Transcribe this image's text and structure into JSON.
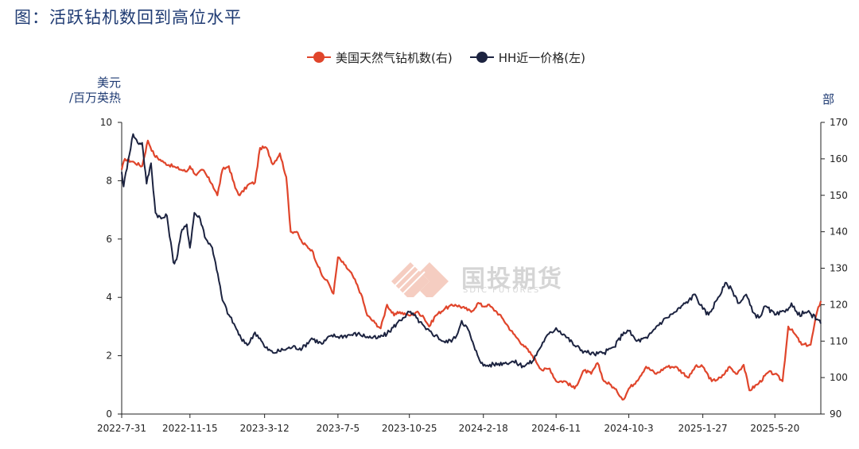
{
  "title": "图：活跃钻机数回到高位水平",
  "watermark": {
    "text": "国投期货",
    "subtext": "SDIC FUTURES"
  },
  "colors": {
    "rig_series": "#e0452b",
    "hh_series": "#1c2340",
    "title": "#1f3b73",
    "axis": "#222222"
  },
  "chart_data": {
    "type": "line",
    "legend_position": "top-center",
    "grid": false,
    "y_left_label": "美元\n/百万英热",
    "y_right_label": "部",
    "y_left_range": [
      0,
      10
    ],
    "y_right_range": [
      90,
      170
    ],
    "y_left_ticks": [
      "0",
      "2",
      "4",
      "6",
      "8",
      "10"
    ],
    "y_right_ticks": [
      "90",
      "100",
      "110",
      "120",
      "130",
      "140",
      "150",
      "160",
      "170"
    ],
    "x_range": [
      "2022-07-31",
      "2025-07-31"
    ],
    "x_ticks": [
      "2022-7-31",
      "2022-11-15",
      "2023-3-12",
      "2023-7-5",
      "2023-10-25",
      "2024-2-18",
      "2024-6-11",
      "2024-10-3",
      "2025-1-27",
      "2025-5-20"
    ],
    "series": [
      {
        "name": "美国天然气钻机数(右)",
        "axis": "right",
        "points": [
          [
            "2022-07-31",
            157
          ],
          [
            "2022-08-05",
            160
          ],
          [
            "2022-08-20",
            159
          ],
          [
            "2022-09-01",
            158
          ],
          [
            "2022-09-10",
            165
          ],
          [
            "2022-09-20",
            161
          ],
          [
            "2022-10-05",
            159
          ],
          [
            "2022-10-25",
            157.5
          ],
          [
            "2022-11-10",
            156.5
          ],
          [
            "2022-11-15",
            158
          ],
          [
            "2022-11-25",
            155.5
          ],
          [
            "2022-12-05",
            157
          ],
          [
            "2022-12-20",
            153
          ],
          [
            "2022-12-28",
            150
          ],
          [
            "2023-01-05",
            157
          ],
          [
            "2023-01-15",
            158
          ],
          [
            "2023-01-25",
            152
          ],
          [
            "2023-02-01",
            150
          ],
          [
            "2023-02-15",
            153
          ],
          [
            "2023-02-25",
            153.5
          ],
          [
            "2023-03-05",
            163
          ],
          [
            "2023-03-15",
            163
          ],
          [
            "2023-03-25",
            158.5
          ],
          [
            "2023-04-05",
            161.5
          ],
          [
            "2023-04-15",
            155
          ],
          [
            "2023-04-22",
            140
          ],
          [
            "2023-05-01",
            140
          ],
          [
            "2023-05-10",
            137
          ],
          [
            "2023-05-25",
            135
          ],
          [
            "2023-06-10",
            128
          ],
          [
            "2023-06-20",
            126
          ],
          [
            "2023-06-28",
            123
          ],
          [
            "2023-07-05",
            133
          ],
          [
            "2023-07-15",
            131
          ],
          [
            "2023-07-28",
            128
          ],
          [
            "2023-08-10",
            123
          ],
          [
            "2023-08-20",
            117
          ],
          [
            "2023-09-01",
            115
          ],
          [
            "2023-09-10",
            113.5
          ],
          [
            "2023-09-20",
            120
          ],
          [
            "2023-10-01",
            117
          ],
          [
            "2023-10-10",
            118
          ],
          [
            "2023-10-25",
            117
          ],
          [
            "2023-11-05",
            118
          ],
          [
            "2023-11-15",
            117
          ],
          [
            "2023-11-25",
            114
          ],
          [
            "2023-12-05",
            117
          ],
          [
            "2023-12-20",
            119
          ],
          [
            "2024-01-05",
            120
          ],
          [
            "2024-01-20",
            119
          ],
          [
            "2024-01-30",
            118
          ],
          [
            "2024-02-10",
            120.5
          ],
          [
            "2024-02-18",
            119.5
          ],
          [
            "2024-02-25",
            120
          ],
          [
            "2024-03-10",
            118
          ],
          [
            "2024-03-20",
            116
          ],
          [
            "2024-04-05",
            112
          ],
          [
            "2024-04-20",
            109
          ],
          [
            "2024-05-05",
            106
          ],
          [
            "2024-05-20",
            102
          ],
          [
            "2024-06-01",
            102.5
          ],
          [
            "2024-06-11",
            99
          ],
          [
            "2024-06-25",
            99
          ],
          [
            "2024-07-10",
            97
          ],
          [
            "2024-07-25",
            102
          ],
          [
            "2024-08-05",
            101
          ],
          [
            "2024-08-15",
            104
          ],
          [
            "2024-08-25",
            99
          ],
          [
            "2024-09-05",
            98
          ],
          [
            "2024-09-15",
            96
          ],
          [
            "2024-09-25",
            94
          ],
          [
            "2024-10-03",
            97
          ],
          [
            "2024-10-15",
            99
          ],
          [
            "2024-10-30",
            103
          ],
          [
            "2024-11-15",
            101
          ],
          [
            "2024-12-01",
            103
          ],
          [
            "2024-12-15",
            103
          ],
          [
            "2025-01-05",
            100
          ],
          [
            "2025-01-15",
            103
          ],
          [
            "2025-01-27",
            103
          ],
          [
            "2025-02-10",
            99
          ],
          [
            "2025-02-25",
            100
          ],
          [
            "2025-03-10",
            103
          ],
          [
            "2025-03-20",
            101
          ],
          [
            "2025-04-01",
            103.5
          ],
          [
            "2025-04-10",
            96.5
          ],
          [
            "2025-04-25",
            98.5
          ],
          [
            "2025-05-10",
            101.5
          ],
          [
            "2025-05-20",
            101
          ],
          [
            "2025-06-01",
            99
          ],
          [
            "2025-06-10",
            114
          ],
          [
            "2025-06-20",
            112
          ],
          [
            "2025-07-01",
            109
          ],
          [
            "2025-07-15",
            109
          ],
          [
            "2025-07-25",
            118
          ],
          [
            "2025-07-31",
            121
          ]
        ]
      },
      {
        "name": "HH近一价格(左)",
        "axis": "left",
        "points": [
          [
            "2022-07-31",
            8.3
          ],
          [
            "2022-08-03",
            7.8
          ],
          [
            "2022-08-10",
            8.7
          ],
          [
            "2022-08-18",
            9.6
          ],
          [
            "2022-08-25",
            9.3
          ],
          [
            "2022-09-01",
            9.3
          ],
          [
            "2022-09-08",
            7.9
          ],
          [
            "2022-09-15",
            8.6
          ],
          [
            "2022-09-22",
            6.9
          ],
          [
            "2022-10-01",
            6.7
          ],
          [
            "2022-10-10",
            6.8
          ],
          [
            "2022-10-20",
            5.2
          ],
          [
            "2022-10-25",
            5.3
          ],
          [
            "2022-11-01",
            6.2
          ],
          [
            "2022-11-10",
            6.5
          ],
          [
            "2022-11-15",
            5.7
          ],
          [
            "2022-11-22",
            6.9
          ],
          [
            "2022-12-01",
            6.7
          ],
          [
            "2022-12-10",
            6.0
          ],
          [
            "2022-12-20",
            5.7
          ],
          [
            "2022-12-25",
            5.2
          ],
          [
            "2023-01-05",
            3.9
          ],
          [
            "2023-01-15",
            3.4
          ],
          [
            "2023-01-25",
            3.0
          ],
          [
            "2023-02-05",
            2.5
          ],
          [
            "2023-02-15",
            2.4
          ],
          [
            "2023-02-25",
            2.8
          ],
          [
            "2023-03-05",
            2.6
          ],
          [
            "2023-03-12",
            2.3
          ],
          [
            "2023-03-25",
            2.1
          ],
          [
            "2023-04-10",
            2.2
          ],
          [
            "2023-04-25",
            2.3
          ],
          [
            "2023-05-10",
            2.25
          ],
          [
            "2023-05-25",
            2.6
          ],
          [
            "2023-06-10",
            2.4
          ],
          [
            "2023-06-25",
            2.7
          ],
          [
            "2023-07-05",
            2.65
          ],
          [
            "2023-07-20",
            2.7
          ],
          [
            "2023-08-05",
            2.75
          ],
          [
            "2023-08-20",
            2.65
          ],
          [
            "2023-09-05",
            2.6
          ],
          [
            "2023-09-20",
            2.75
          ],
          [
            "2023-10-05",
            3.1
          ],
          [
            "2023-10-15",
            3.3
          ],
          [
            "2023-10-25",
            3.5
          ],
          [
            "2023-11-05",
            3.3
          ],
          [
            "2023-11-20",
            2.9
          ],
          [
            "2023-12-05",
            2.7
          ],
          [
            "2023-12-20",
            2.45
          ],
          [
            "2024-01-05",
            2.6
          ],
          [
            "2024-01-15",
            3.2
          ],
          [
            "2024-01-25",
            2.9
          ],
          [
            "2024-02-05",
            2.2
          ],
          [
            "2024-02-18",
            1.65
          ],
          [
            "2024-03-05",
            1.7
          ],
          [
            "2024-03-20",
            1.75
          ],
          [
            "2024-04-05",
            1.8
          ],
          [
            "2024-04-20",
            1.65
          ],
          [
            "2024-05-05",
            1.8
          ],
          [
            "2024-05-15",
            2.2
          ],
          [
            "2024-05-25",
            2.6
          ],
          [
            "2024-06-11",
            2.95
          ],
          [
            "2024-06-25",
            2.7
          ],
          [
            "2024-07-10",
            2.35
          ],
          [
            "2024-07-25",
            2.15
          ],
          [
            "2024-08-10",
            2.05
          ],
          [
            "2024-08-25",
            2.1
          ],
          [
            "2024-09-10",
            2.3
          ],
          [
            "2024-09-25",
            2.8
          ],
          [
            "2024-10-03",
            2.85
          ],
          [
            "2024-10-15",
            2.5
          ],
          [
            "2024-11-01",
            2.6
          ],
          [
            "2024-11-15",
            3.0
          ],
          [
            "2024-12-01",
            3.3
          ],
          [
            "2024-12-15",
            3.5
          ],
          [
            "2025-01-05",
            3.9
          ],
          [
            "2025-01-15",
            4.1
          ],
          [
            "2025-01-27",
            3.6
          ],
          [
            "2025-02-05",
            3.4
          ],
          [
            "2025-02-20",
            4.0
          ],
          [
            "2025-03-05",
            4.5
          ],
          [
            "2025-03-15",
            4.2
          ],
          [
            "2025-03-25",
            3.8
          ],
          [
            "2025-04-05",
            4.1
          ],
          [
            "2025-04-15",
            3.5
          ],
          [
            "2025-04-25",
            3.3
          ],
          [
            "2025-05-05",
            3.7
          ],
          [
            "2025-05-20",
            3.4
          ],
          [
            "2025-06-05",
            3.5
          ],
          [
            "2025-06-15",
            3.8
          ],
          [
            "2025-06-25",
            3.4
          ],
          [
            "2025-07-10",
            3.5
          ],
          [
            "2025-07-25",
            3.25
          ],
          [
            "2025-07-31",
            3.1
          ]
        ]
      }
    ]
  }
}
